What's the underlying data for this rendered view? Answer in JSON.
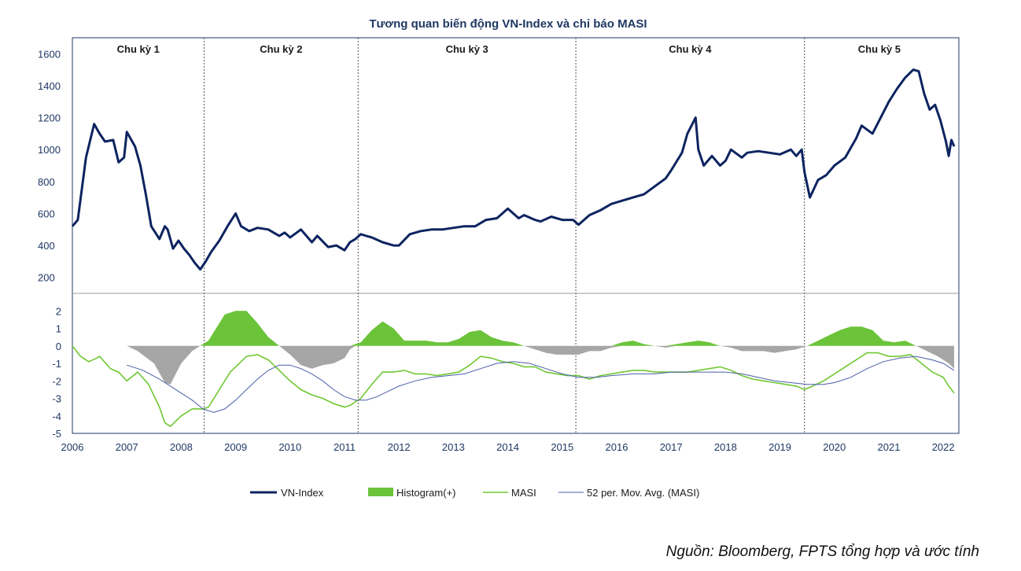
{
  "chart_data": {
    "title": "Tương quan biến động VN-Index và chỉ báo MASI",
    "source": "Nguồn: Bloomberg, FPTS tổng hợp và ước tính",
    "x_ticks": [
      "2006",
      "2007",
      "2008",
      "2009",
      "2010",
      "2011",
      "2012",
      "2013",
      "2014",
      "2015",
      "2016",
      "2017",
      "2018",
      "2019",
      "2020",
      "2021",
      "2022"
    ],
    "cycles": [
      {
        "label": "Chu kỳ 1",
        "start": 2006.0,
        "end": 2008.42
      },
      {
        "label": "Chu kỳ 2",
        "start": 2008.42,
        "end": 2011.25
      },
      {
        "label": "Chu kỳ 3",
        "start": 2011.25,
        "end": 2015.25
      },
      {
        "label": "Chu kỳ 4",
        "start": 2015.25,
        "end": 2019.45
      },
      {
        "label": "Chu kỳ 5",
        "start": 2019.45,
        "end": 2022.2
      }
    ],
    "upper_panel": {
      "type": "line",
      "ylim": [
        100,
        1700
      ],
      "y_ticks": [
        200,
        400,
        600,
        800,
        1000,
        1200,
        1400,
        1600
      ],
      "series": [
        {
          "name": "VN-Index",
          "color": "#0d2460",
          "x": [
            2006.0,
            2006.1,
            2006.25,
            2006.4,
            2006.5,
            2006.6,
            2006.75,
            2006.85,
            2006.95,
            2007.0,
            2007.15,
            2007.25,
            2007.35,
            2007.45,
            2007.6,
            2007.7,
            2007.75,
            2007.85,
            2007.95,
            2008.05,
            2008.15,
            2008.25,
            2008.35,
            2008.45,
            2008.55,
            2008.7,
            2008.85,
            2009.0,
            2009.1,
            2009.25,
            2009.4,
            2009.6,
            2009.8,
            2009.9,
            2010.0,
            2010.2,
            2010.4,
            2010.5,
            2010.7,
            2010.85,
            2011.0,
            2011.1,
            2011.2,
            2011.3,
            2011.4,
            2011.5,
            2011.7,
            2011.9,
            2012.0,
            2012.2,
            2012.4,
            2012.6,
            2012.8,
            2013.0,
            2013.2,
            2013.4,
            2013.6,
            2013.8,
            2014.0,
            2014.1,
            2014.2,
            2014.3,
            2014.5,
            2014.6,
            2014.8,
            2015.0,
            2015.2,
            2015.3,
            2015.5,
            2015.7,
            2015.9,
            2016.1,
            2016.3,
            2016.5,
            2016.7,
            2016.9,
            2017.0,
            2017.2,
            2017.3,
            2017.45,
            2017.5,
            2017.6,
            2017.75,
            2017.9,
            2018.0,
            2018.1,
            2018.3,
            2018.4,
            2018.6,
            2018.8,
            2019.0,
            2019.2,
            2019.3,
            2019.4,
            2019.45,
            2019.55,
            2019.7,
            2019.85,
            2020.0,
            2020.2,
            2020.4,
            2020.5,
            2020.7,
            2020.85,
            2021.0,
            2021.15,
            2021.3,
            2021.45,
            2021.55,
            2021.65,
            2021.75,
            2021.85,
            2021.95,
            2022.05,
            2022.1,
            2022.15,
            2022.2
          ],
          "values": [
            520,
            560,
            950,
            1160,
            1100,
            1050,
            1060,
            920,
            950,
            1110,
            1020,
            900,
            720,
            520,
            440,
            520,
            500,
            380,
            430,
            380,
            340,
            290,
            250,
            300,
            360,
            430,
            520,
            600,
            520,
            490,
            510,
            500,
            460,
            480,
            450,
            500,
            420,
            460,
            390,
            400,
            370,
            420,
            440,
            470,
            460,
            450,
            420,
            400,
            400,
            470,
            490,
            500,
            500,
            510,
            520,
            520,
            560,
            570,
            630,
            600,
            570,
            590,
            560,
            550,
            580,
            560,
            560,
            530,
            590,
            620,
            660,
            680,
            700,
            720,
            770,
            820,
            870,
            980,
            1100,
            1200,
            1000,
            900,
            960,
            900,
            930,
            1000,
            950,
            980,
            990,
            980,
            970,
            1000,
            960,
            1000,
            860,
            700,
            810,
            840,
            900,
            950,
            1070,
            1150,
            1100,
            1200,
            1300,
            1380,
            1450,
            1500,
            1490,
            1350,
            1250,
            1280,
            1180,
            1050,
            960,
            1060,
            1020
          ]
        }
      ]
    },
    "lower_panel": {
      "type": "line+area",
      "ylim": [
        -5,
        3
      ],
      "y_ticks": [
        2,
        1,
        0,
        -1,
        -2,
        -3,
        -4,
        -5
      ],
      "series": [
        {
          "name": "Histogram(+)",
          "kind": "area",
          "color": "#6bc33a",
          "negative_color": "#a6a6a6",
          "x": [
            2007.0,
            2007.2,
            2007.5,
            2007.7,
            2007.8,
            2008.0,
            2008.2,
            2008.35,
            2008.5,
            2008.6,
            2008.8,
            2009.0,
            2009.2,
            2009.4,
            2009.6,
            2009.8,
            2010.0,
            2010.2,
            2010.4,
            2010.6,
            2010.8,
            2011.0,
            2011.1,
            2011.2,
            2011.3,
            2011.5,
            2011.7,
            2011.9,
            2012.1,
            2012.3,
            2012.5,
            2012.7,
            2012.9,
            2013.1,
            2013.3,
            2013.5,
            2013.7,
            2013.9,
            2014.1,
            2014.3,
            2014.5,
            2014.7,
            2014.9,
            2015.1,
            2015.3,
            2015.5,
            2015.7,
            2015.9,
            2016.1,
            2016.3,
            2016.5,
            2016.7,
            2016.9,
            2017.1,
            2017.3,
            2017.5,
            2017.7,
            2017.9,
            2018.1,
            2018.3,
            2018.5,
            2018.7,
            2018.9,
            2019.1,
            2019.3,
            2019.5,
            2019.7,
            2019.9,
            2020.1,
            2020.3,
            2020.5,
            2020.7,
            2020.9,
            2021.1,
            2021.3,
            2021.5,
            2021.7,
            2021.9,
            2022.1,
            2022.2
          ],
          "values": [
            0,
            -0.3,
            -1.0,
            -2.1,
            -2.2,
            -1.0,
            -0.3,
            0,
            0.3,
            0.8,
            1.8,
            2.0,
            2.0,
            1.3,
            0.5,
            0,
            -0.5,
            -1.1,
            -1.3,
            -1.1,
            -1.0,
            -0.7,
            -0.2,
            0.1,
            0.2,
            0.9,
            1.4,
            1.0,
            0.3,
            0.3,
            0.3,
            0.2,
            0.2,
            0.4,
            0.8,
            0.9,
            0.5,
            0.3,
            0.2,
            0,
            -0.2,
            -0.4,
            -0.5,
            -0.5,
            -0.5,
            -0.3,
            -0.3,
            -0.1,
            0.2,
            0.3,
            0.1,
            0,
            -0.1,
            0.1,
            0.2,
            0.3,
            0.2,
            0,
            -0.1,
            -0.3,
            -0.3,
            -0.3,
            -0.4,
            -0.3,
            -0.2,
            0,
            0.3,
            0.6,
            0.9,
            1.1,
            1.1,
            0.9,
            0.3,
            0.2,
            0.3,
            0,
            -0.3,
            -0.6,
            -1.0,
            -1.3
          ]
        },
        {
          "name": "MASI",
          "kind": "line",
          "color": "#70c832",
          "x": [
            2006.0,
            2006.15,
            2006.3,
            2006.45,
            2006.5,
            2006.7,
            2006.85,
            2007.0,
            2007.2,
            2007.4,
            2007.6,
            2007.7,
            2007.8,
            2008.0,
            2008.2,
            2008.4,
            2008.5,
            2008.7,
            2008.9,
            2009.0,
            2009.2,
            2009.4,
            2009.6,
            2009.8,
            2010.0,
            2010.2,
            2010.4,
            2010.6,
            2010.8,
            2011.0,
            2011.1,
            2011.2,
            2011.3,
            2011.5,
            2011.7,
            2011.9,
            2012.1,
            2012.3,
            2012.5,
            2012.7,
            2012.9,
            2013.1,
            2013.3,
            2013.5,
            2013.7,
            2013.9,
            2014.1,
            2014.3,
            2014.5,
            2014.7,
            2014.9,
            2015.1,
            2015.3,
            2015.5,
            2015.7,
            2015.9,
            2016.1,
            2016.3,
            2016.5,
            2016.7,
            2016.9,
            2017.1,
            2017.3,
            2017.5,
            2017.7,
            2017.9,
            2018.1,
            2018.3,
            2018.5,
            2018.7,
            2018.9,
            2019.1,
            2019.3,
            2019.45,
            2019.6,
            2019.8,
            2020.0,
            2020.2,
            2020.4,
            2020.6,
            2020.8,
            2021.0,
            2021.2,
            2021.4,
            2021.6,
            2021.8,
            2022.0,
            2022.1,
            2022.2
          ],
          "values": [
            0,
            -0.6,
            -0.9,
            -0.7,
            -0.6,
            -1.3,
            -1.5,
            -2.0,
            -1.5,
            -2.2,
            -3.5,
            -4.4,
            -4.6,
            -4.0,
            -3.6,
            -3.6,
            -3.5,
            -2.5,
            -1.5,
            -1.2,
            -0.6,
            -0.5,
            -0.8,
            -1.4,
            -2.0,
            -2.5,
            -2.8,
            -3.0,
            -3.3,
            -3.5,
            -3.4,
            -3.2,
            -3.0,
            -2.2,
            -1.5,
            -1.5,
            -1.4,
            -1.6,
            -1.6,
            -1.7,
            -1.6,
            -1.5,
            -1.1,
            -0.6,
            -0.7,
            -0.9,
            -1.0,
            -1.2,
            -1.2,
            -1.5,
            -1.6,
            -1.7,
            -1.7,
            -1.9,
            -1.7,
            -1.6,
            -1.5,
            -1.4,
            -1.4,
            -1.5,
            -1.5,
            -1.5,
            -1.5,
            -1.4,
            -1.3,
            -1.2,
            -1.4,
            -1.7,
            -1.9,
            -2.0,
            -2.1,
            -2.2,
            -2.3,
            -2.5,
            -2.3,
            -2.0,
            -1.6,
            -1.2,
            -0.8,
            -0.4,
            -0.4,
            -0.6,
            -0.6,
            -0.5,
            -1.0,
            -1.5,
            -1.8,
            -2.3,
            -2.7
          ]
        },
        {
          "name": "52 per. Mov. Avg. (MASI)",
          "kind": "line",
          "color": "#4a5fa8",
          "x": [
            2007.0,
            2007.3,
            2007.6,
            2007.9,
            2008.2,
            2008.4,
            2008.6,
            2008.8,
            2009.0,
            2009.2,
            2009.4,
            2009.6,
            2009.8,
            2010.0,
            2010.2,
            2010.4,
            2010.6,
            2010.8,
            2011.0,
            2011.2,
            2011.4,
            2011.6,
            2011.8,
            2012.0,
            2012.3,
            2012.6,
            2012.9,
            2013.2,
            2013.5,
            2013.8,
            2014.1,
            2014.4,
            2014.7,
            2015.0,
            2015.3,
            2015.6,
            2015.9,
            2016.3,
            2016.7,
            2017.0,
            2017.4,
            2017.7,
            2018.0,
            2018.3,
            2018.6,
            2018.9,
            2019.2,
            2019.5,
            2019.8,
            2020.0,
            2020.3,
            2020.6,
            2020.9,
            2021.2,
            2021.5,
            2021.8,
            2022.0,
            2022.2
          ],
          "values": [
            -1.1,
            -1.4,
            -1.9,
            -2.5,
            -3.1,
            -3.6,
            -3.8,
            -3.6,
            -3.1,
            -2.5,
            -1.9,
            -1.4,
            -1.1,
            -1.1,
            -1.3,
            -1.6,
            -2.0,
            -2.5,
            -2.9,
            -3.1,
            -3.1,
            -2.9,
            -2.6,
            -2.3,
            -2.0,
            -1.8,
            -1.7,
            -1.6,
            -1.3,
            -1.0,
            -0.9,
            -1.0,
            -1.3,
            -1.6,
            -1.8,
            -1.8,
            -1.7,
            -1.6,
            -1.6,
            -1.5,
            -1.5,
            -1.5,
            -1.5,
            -1.6,
            -1.8,
            -2.0,
            -2.1,
            -2.2,
            -2.2,
            -2.1,
            -1.8,
            -1.3,
            -0.9,
            -0.7,
            -0.6,
            -0.8,
            -1.0,
            -1.4
          ]
        }
      ]
    },
    "legend": {
      "placement": "bottom"
    }
  }
}
